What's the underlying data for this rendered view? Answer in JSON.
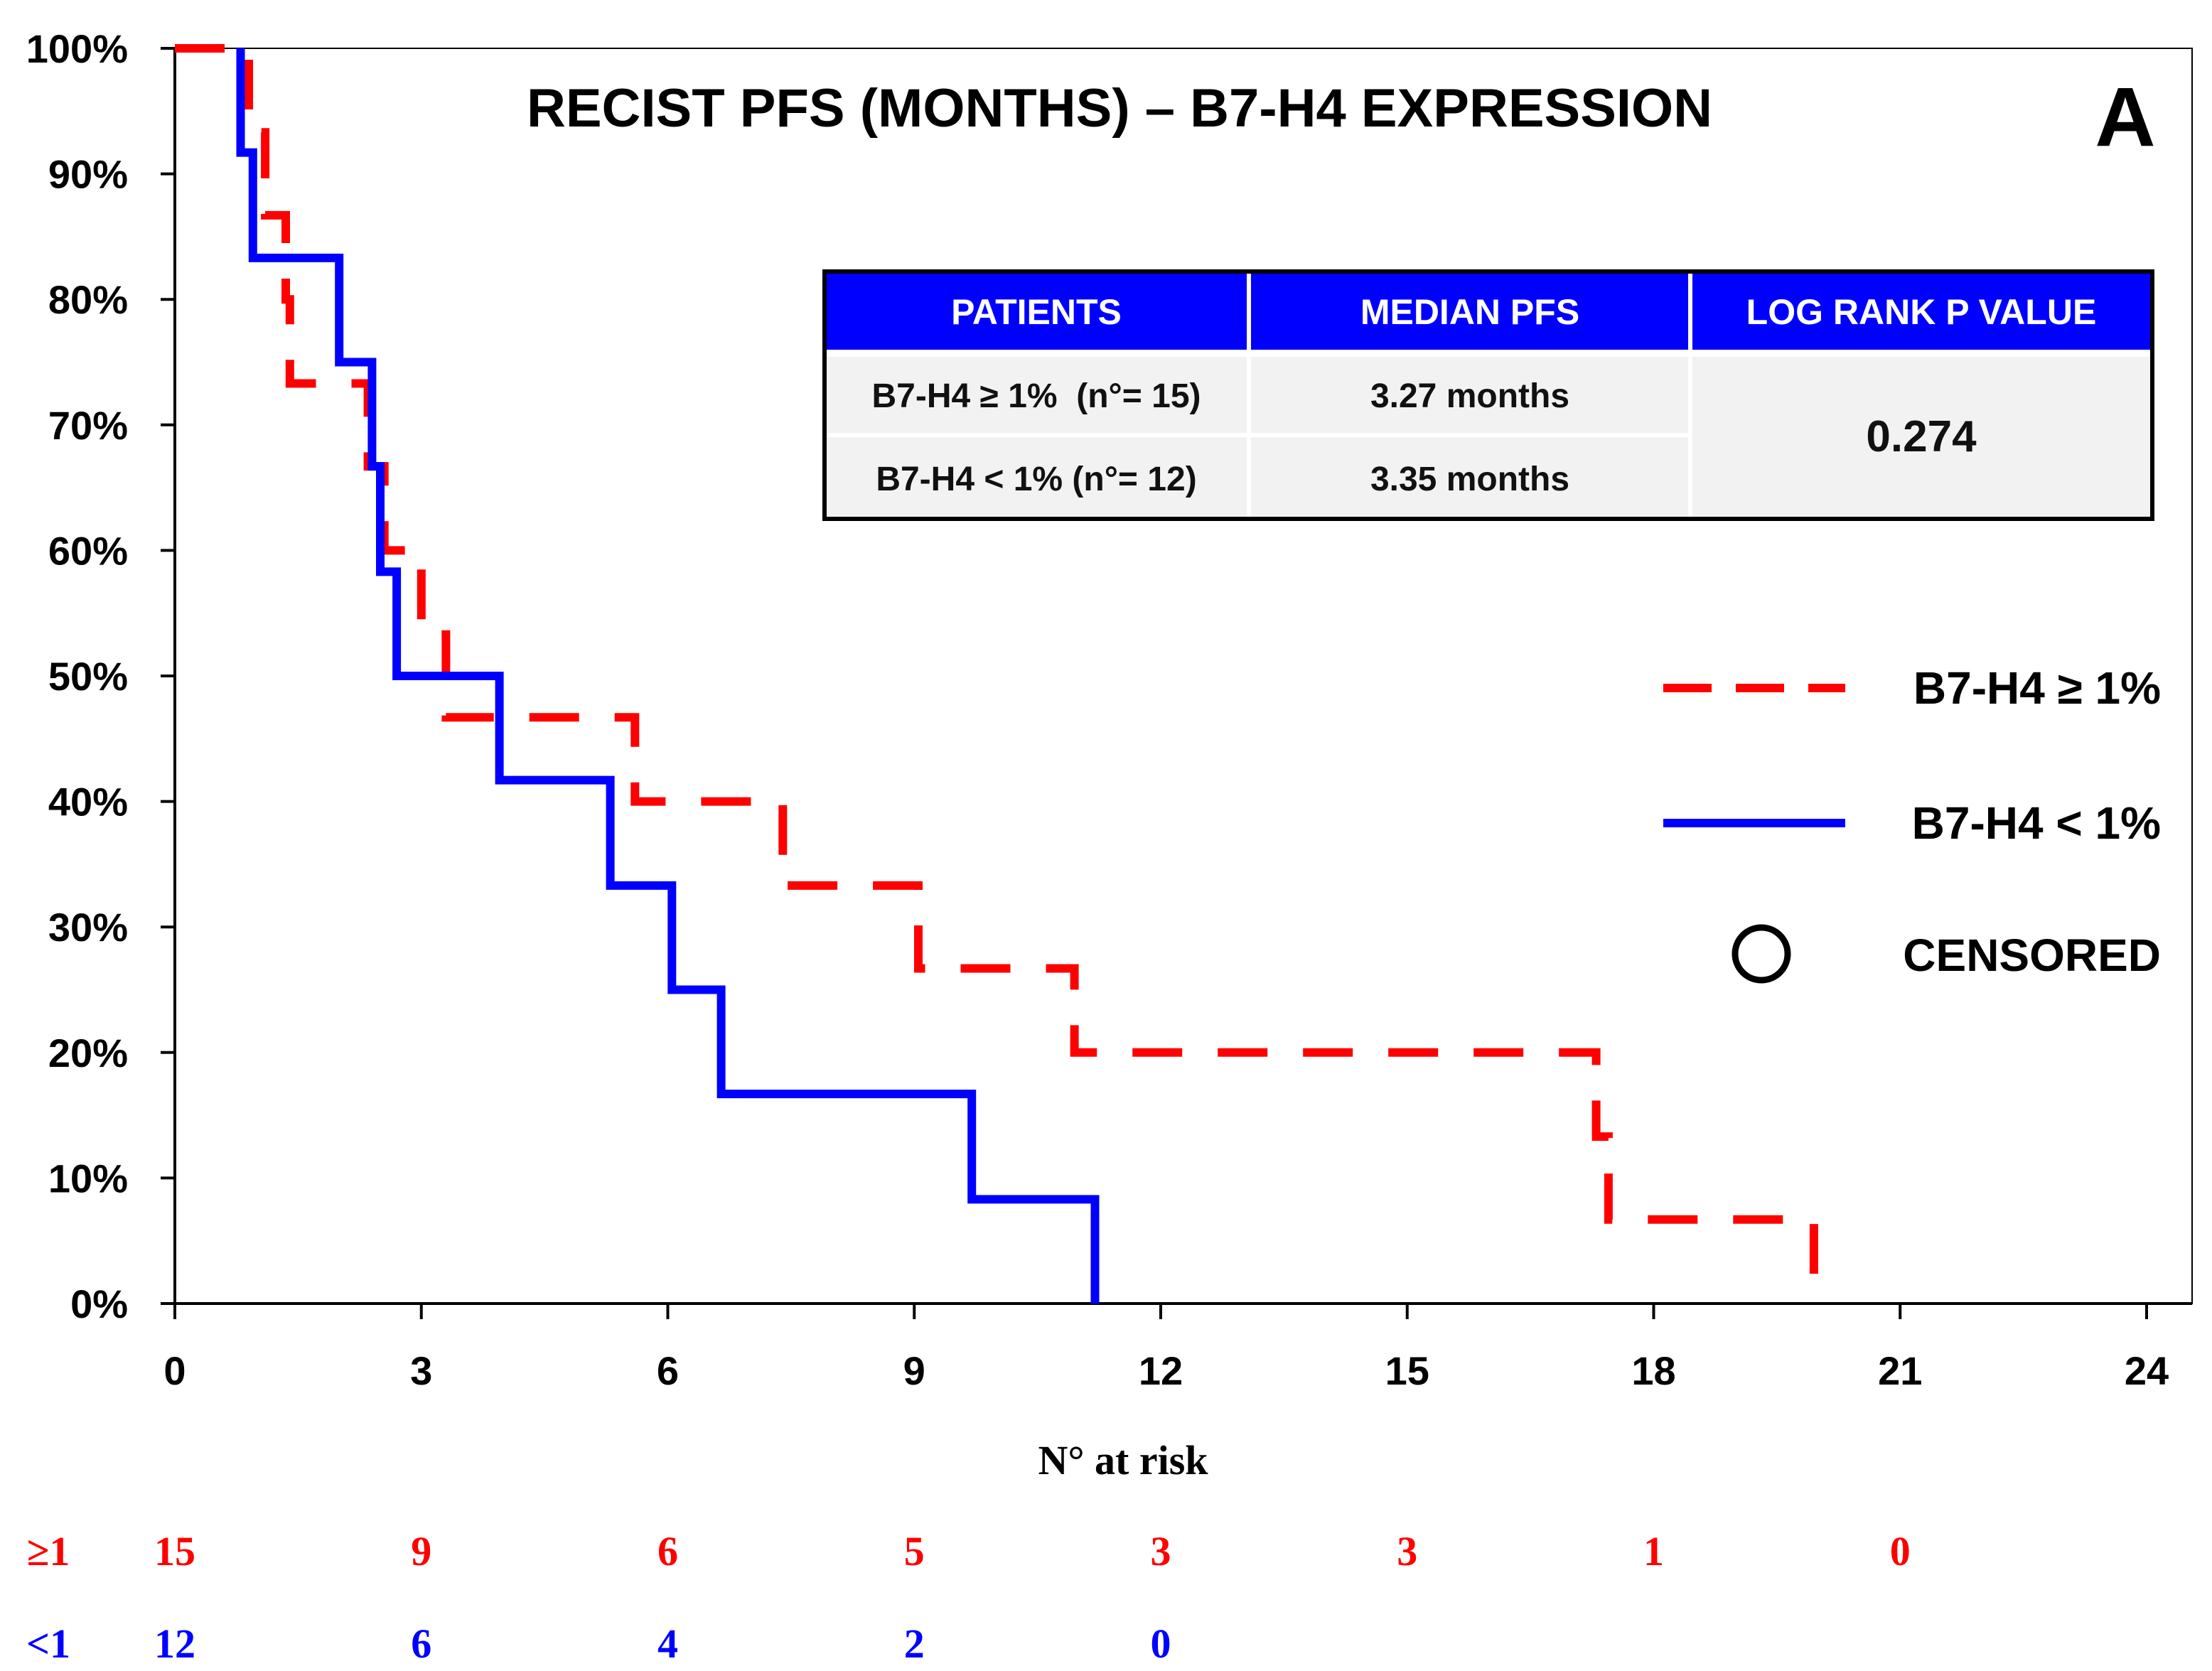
{
  "colors": {
    "high": "#ff0000",
    "low": "#0000ff",
    "table_header_bg": "#0000ff",
    "table_body_bg": "#f2f2f2",
    "axis": "#000000"
  },
  "chart_data": {
    "type": "line",
    "subtype": "kaplan-meier step",
    "title": "RECIST PFS (MONTHS) – B7-H4 EXPRESSION",
    "panel_label": "A",
    "xlabel": "",
    "ylabel": "",
    "xlim": [
      0,
      24
    ],
    "ylim": [
      0,
      100
    ],
    "x_ticks": [
      0,
      3,
      6,
      9,
      12,
      15,
      18,
      21,
      24
    ],
    "x_tick_labels": [
      "0",
      "3",
      "6",
      "9",
      "12",
      "15",
      "18",
      "21",
      "24"
    ],
    "y_ticks": [
      0,
      10,
      20,
      30,
      40,
      50,
      60,
      70,
      80,
      90,
      100
    ],
    "y_tick_labels": [
      "0%",
      "10%",
      "20%",
      "30%",
      "40%",
      "50%",
      "60%",
      "70%",
      "80%",
      "90%",
      "100%"
    ],
    "grid": false,
    "series": [
      {
        "name": "B7-H4 ≥ 1%",
        "style": "dashed",
        "color": "#ff0000",
        "points": [
          [
            0,
            100
          ],
          [
            0.9,
            100
          ],
          [
            0.9,
            93.3
          ],
          [
            1.1,
            93.3
          ],
          [
            1.1,
            86.7
          ],
          [
            1.35,
            86.7
          ],
          [
            1.35,
            80
          ],
          [
            1.4,
            80
          ],
          [
            1.4,
            73.3
          ],
          [
            2.35,
            73.3
          ],
          [
            2.35,
            66.7
          ],
          [
            2.55,
            66.7
          ],
          [
            2.55,
            60
          ],
          [
            3.0,
            60
          ],
          [
            3.0,
            53.3
          ],
          [
            3.3,
            53.3
          ],
          [
            3.3,
            46.7
          ],
          [
            5.6,
            46.7
          ],
          [
            5.6,
            40
          ],
          [
            7.4,
            40
          ],
          [
            7.4,
            33.3
          ],
          [
            9.05,
            33.3
          ],
          [
            9.05,
            26.7
          ],
          [
            10.95,
            26.7
          ],
          [
            10.95,
            20
          ],
          [
            17.3,
            20
          ],
          [
            17.3,
            13.3
          ],
          [
            17.45,
            13.3
          ],
          [
            17.45,
            6.7
          ],
          [
            19.95,
            6.7
          ],
          [
            19.95,
            0
          ]
        ]
      },
      {
        "name": "B7-H4 < 1%",
        "style": "solid",
        "color": "#0000ff",
        "points": [
          [
            0.8,
            100
          ],
          [
            0.8,
            91.7
          ],
          [
            0.95,
            91.7
          ],
          [
            0.95,
            83.3
          ],
          [
            2.0,
            83.3
          ],
          [
            2.0,
            75
          ],
          [
            2.4,
            75
          ],
          [
            2.4,
            66.7
          ],
          [
            2.5,
            66.7
          ],
          [
            2.5,
            58.3
          ],
          [
            2.7,
            58.3
          ],
          [
            2.7,
            50
          ],
          [
            3.95,
            50
          ],
          [
            3.95,
            41.7
          ],
          [
            5.3,
            41.7
          ],
          [
            5.3,
            33.3
          ],
          [
            6.05,
            33.3
          ],
          [
            6.05,
            25
          ],
          [
            6.65,
            25
          ],
          [
            6.65,
            16.7
          ],
          [
            9.7,
            16.7
          ],
          [
            9.7,
            8.3
          ],
          [
            11.2,
            8.3
          ],
          [
            11.2,
            0
          ]
        ]
      }
    ],
    "legend": {
      "placement": "right",
      "entries": [
        {
          "label": "B7-H4 ≥ 1%",
          "style": "dashed",
          "color": "#ff0000"
        },
        {
          "label": "B7-H4 < 1%",
          "style": "solid",
          "color": "#0000ff"
        },
        {
          "label": "CENSORED",
          "style": "circle",
          "color": "#000000"
        }
      ]
    },
    "stats_table": {
      "headers": [
        "PATIENTS",
        "MEDIAN PFS",
        "LOG RANK P VALUE"
      ],
      "rows": [
        [
          "B7-H4 ≥ 1%  (n°= 15)",
          "3.27 months"
        ],
        [
          "B7-H4 < 1% (n°= 12)",
          "3.35 months"
        ]
      ],
      "p_value": "0.274"
    },
    "at_risk": {
      "title": "N° at risk",
      "rows": [
        {
          "label": "≥1",
          "color": "#ff0000",
          "counts": [
            "15",
            "9",
            "6",
            "5",
            "3",
            "3",
            "1",
            "0"
          ]
        },
        {
          "label": "<1",
          "color": "#0000ff",
          "counts": [
            "12",
            "6",
            "4",
            "2",
            "0"
          ]
        }
      ]
    }
  }
}
